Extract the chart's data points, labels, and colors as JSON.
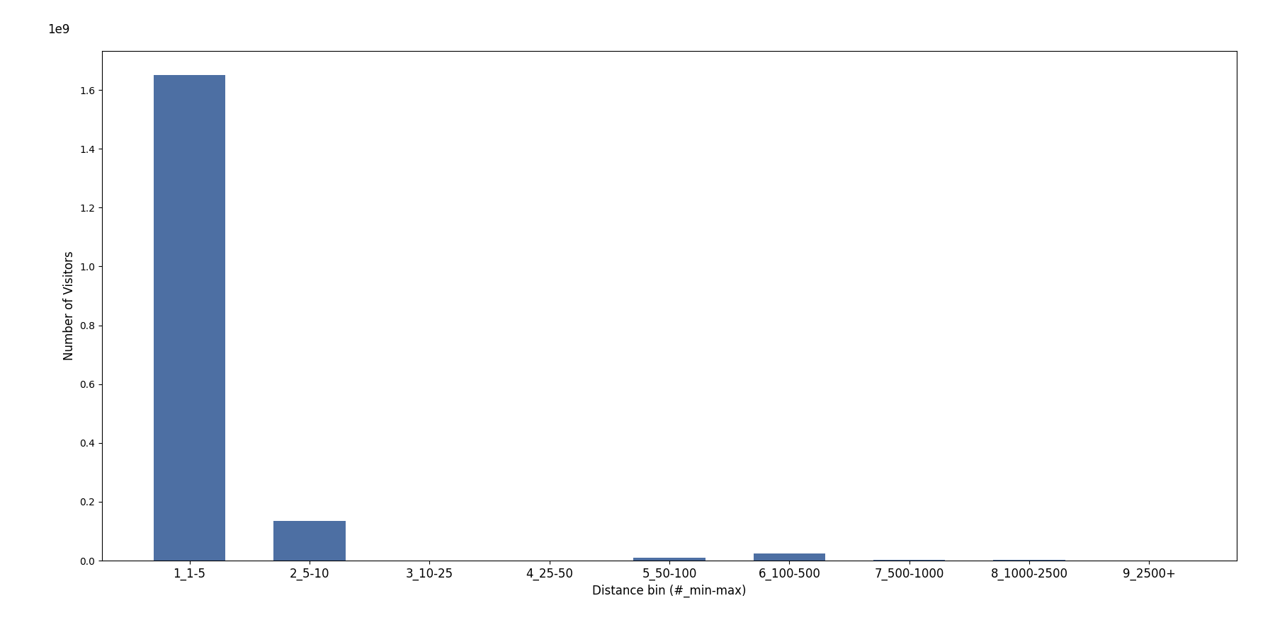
{
  "categories": [
    "1_1-5",
    "2_5-10",
    "3_10-25",
    "4_25-50",
    "5_50-100",
    "6_100-500",
    "7_500-1000",
    "8_1000-2500",
    "9_2500+"
  ],
  "values": [
    1650000000,
    135000000,
    0,
    0,
    10000000,
    25000000,
    2000000,
    1500000,
    1000000
  ],
  "bar_color": "#4d6fa3",
  "xlabel": "Distance bin (#_min-max)",
  "ylabel": "Number of Visitors",
  "figsize": [
    18.0,
    9.0
  ],
  "dpi": 100,
  "tick_fontsize": 12,
  "label_fontsize": 12
}
